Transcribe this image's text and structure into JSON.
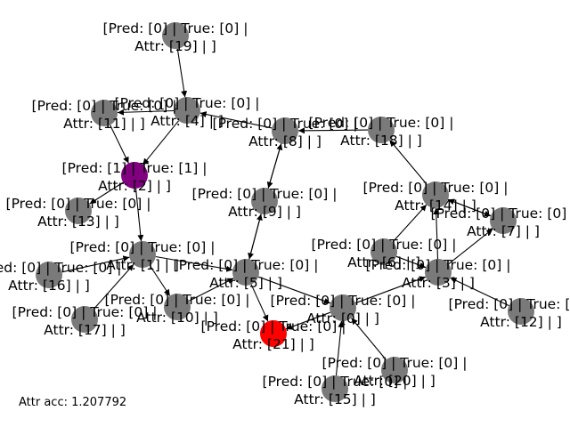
{
  "graph": {
    "edge_color": "#000000",
    "colors": {
      "default": "#7a7a7a",
      "predicted_one": "#800080",
      "highlighted": "#ff0000"
    },
    "nodes": [
      {
        "id": 0,
        "line1": "[Pred: [0] | True: [0] |",
        "line2": "Attr: [0] | ]",
        "color": "default"
      },
      {
        "id": 1,
        "line1": "[Pred: [0] | True: [0] |",
        "line2": "Attr: [1] | ]",
        "color": "default"
      },
      {
        "id": 2,
        "line1": "[Pred: [1] | True: [1] |",
        "line2": "Attr: [2] | ]",
        "color": "predicted_one"
      },
      {
        "id": 3,
        "line1": "[Pred: [0] | True: [0] |",
        "line2": "Attr: [3] | ]",
        "color": "default"
      },
      {
        "id": 4,
        "line1": "[Pred: [0] | True: [0] |",
        "line2": "Attr: [4] | ]",
        "color": "default"
      },
      {
        "id": 5,
        "line1": "[Pred: [0] | True: [0] |",
        "line2": "Attr: [5] | ]",
        "color": "default"
      },
      {
        "id": 6,
        "line1": "[Pred: [0] | True: [0] |",
        "line2": "Attr: [6] | ]",
        "color": "default"
      },
      {
        "id": 7,
        "line1": "[Pred: [0] | True: [0] |",
        "line2": "Attr: [7] | ]",
        "color": "default"
      },
      {
        "id": 8,
        "line1": "[Pred: [0] | True: [0] |",
        "line2": "Attr: [8] | ]",
        "color": "default"
      },
      {
        "id": 9,
        "line1": "[Pred: [0] | True: [0] |",
        "line2": "Attr: [9] | ]",
        "color": "default"
      },
      {
        "id": 10,
        "line1": "[Pred: [0] | True: [0] |",
        "line2": "Attr: [10] | ]",
        "color": "default"
      },
      {
        "id": 11,
        "line1": "[Pred: [0] | True: [0] |",
        "line2": "Attr: [11] | ]",
        "color": "default"
      },
      {
        "id": 12,
        "line1": "[Pred: [0] | True: [0] |",
        "line2": "Attr: [12] | ]",
        "color": "default"
      },
      {
        "id": 13,
        "line1": "[Pred: [0] | True: [0] |",
        "line2": "Attr: [13] | ]",
        "color": "default"
      },
      {
        "id": 14,
        "line1": "[Pred: [0] | True: [0] |",
        "line2": "Attr: [14] | ]",
        "color": "default"
      },
      {
        "id": 15,
        "line1": "[Pred: [0] | True: [0] |",
        "line2": "Attr: [15] | ]",
        "color": "default"
      },
      {
        "id": 16,
        "line1": "[Pred: [0] | True: [0] |",
        "line2": "Attr: [16] | ]",
        "color": "default"
      },
      {
        "id": 17,
        "line1": "[Pred: [0] | True: [0] |",
        "line2": "Attr: [17] | ]",
        "color": "default"
      },
      {
        "id": 18,
        "line1": "[Pred: [0] | True: [0] |",
        "line2": "Attr: [18] | ]",
        "color": "default"
      },
      {
        "id": 19,
        "line1": "[Pred: [0] | True: [0] |",
        "line2": "Attr: [19] | ]",
        "color": "default"
      },
      {
        "id": 20,
        "line1": "[Pred: [0] | True: [0] |",
        "line2": "Attr: [20] | ]",
        "color": "default"
      },
      {
        "id": 21,
        "line1": "[Pred: [0] | True: [0] |",
        "line2": "Attr: [21] | ]",
        "color": "highlighted"
      }
    ],
    "edges": [
      {
        "from": 19,
        "to": 4
      },
      {
        "from": 4,
        "to": 11
      },
      {
        "from": 4,
        "to": 2
      },
      {
        "from": 8,
        "to": 4
      },
      {
        "from": 18,
        "to": 8
      },
      {
        "from": 14,
        "to": 18
      },
      {
        "from": 11,
        "to": 2
      },
      {
        "from": 2,
        "to": 13
      },
      {
        "from": 2,
        "to": 1
      },
      {
        "from": 16,
        "to": 1
      },
      {
        "from": 17,
        "to": 1
      },
      {
        "from": 1,
        "to": 10
      },
      {
        "from": 1,
        "to": 5
      },
      {
        "from": 9,
        "to": 8
      },
      {
        "from": 8,
        "to": 9
      },
      {
        "from": 5,
        "to": 9
      },
      {
        "from": 9,
        "to": 5
      },
      {
        "from": 5,
        "to": 21
      },
      {
        "from": 10,
        "to": 5
      },
      {
        "from": 5,
        "to": 0
      },
      {
        "from": 0,
        "to": 21
      },
      {
        "from": 0,
        "to": 3
      },
      {
        "from": 20,
        "to": 0
      },
      {
        "from": 15,
        "to": 0
      },
      {
        "from": 6,
        "to": 3
      },
      {
        "from": 6,
        "to": 14
      },
      {
        "from": 3,
        "to": 14
      },
      {
        "from": 7,
        "to": 14
      },
      {
        "from": 14,
        "to": 7
      },
      {
        "from": 12,
        "to": 3
      },
      {
        "from": 3,
        "to": 7
      }
    ]
  },
  "footer": {
    "accuracy_text": "Attr acc: 1.207792"
  }
}
